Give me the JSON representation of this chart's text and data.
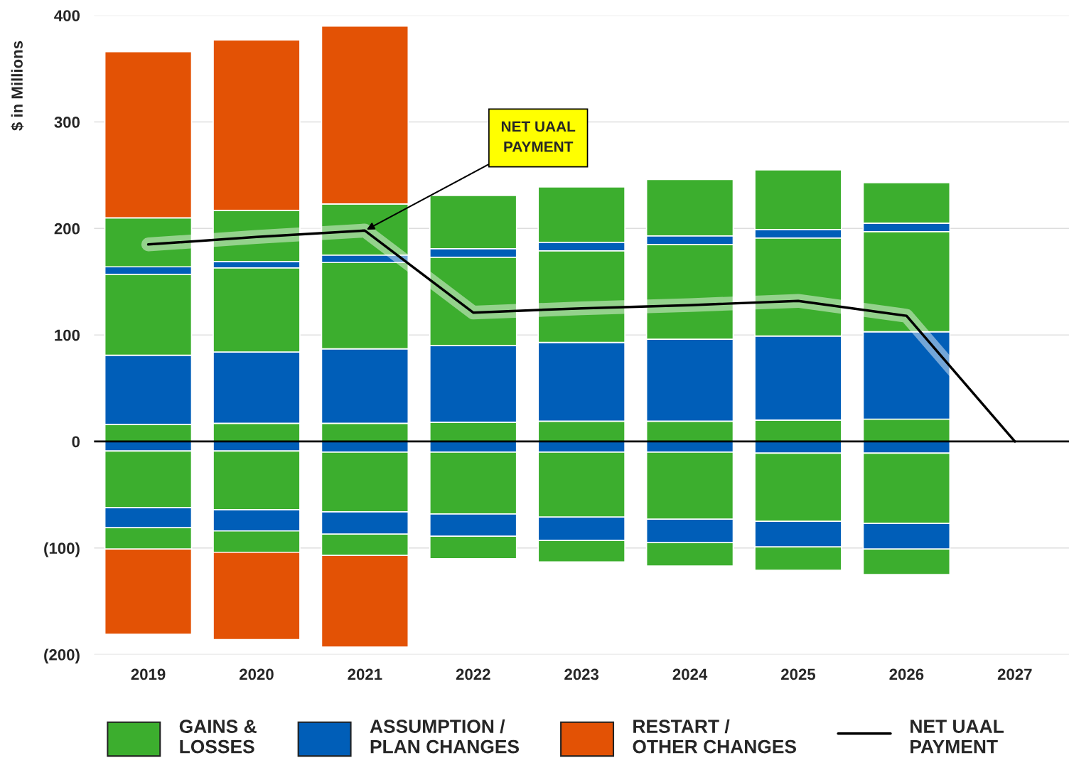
{
  "chart_data": {
    "type": "bar",
    "stacked": true,
    "ylabel": "$ in Millions",
    "categories": [
      "2019",
      "2020",
      "2021",
      "2022",
      "2023",
      "2024",
      "2025",
      "2026",
      "2027"
    ],
    "series": [
      {
        "name": "GAINS & LOSSES",
        "color": "#3cae2e",
        "values": [
          16,
          17,
          17,
          18,
          19,
          19,
          20,
          21,
          null
        ]
      },
      {
        "name": "ASSUMPTION / PLAN CHANGES",
        "color": "#005eb8",
        "values": [
          65,
          67,
          70,
          72,
          74,
          77,
          79,
          82,
          null
        ]
      },
      {
        "color": "#3cae2e",
        "values": [
          76,
          79,
          81,
          83,
          86,
          89,
          92,
          94,
          null
        ]
      },
      {
        "color": "#005eb8",
        "values": [
          7,
          6,
          7,
          8,
          8,
          8,
          8,
          8,
          null
        ]
      },
      {
        "color": "#3cae2e",
        "values": [
          46,
          48,
          48,
          50,
          52,
          53,
          56,
          38,
          null
        ]
      },
      {
        "name": "RESTART / OTHER CHANGES",
        "color": "#e35205",
        "values": [
          156,
          160,
          167,
          null,
          null,
          null,
          null,
          null,
          null
        ]
      },
      {
        "color": "#005eb8",
        "values": [
          -9,
          -9,
          -10,
          -10,
          -10,
          -10,
          -11,
          -11,
          null
        ]
      },
      {
        "color": "#3cae2e",
        "values": [
          -53,
          -55,
          -56,
          -58,
          -61,
          -63,
          -64,
          -66,
          null
        ]
      },
      {
        "color": "#005eb8",
        "values": [
          -19,
          -20,
          -21,
          -21,
          -22,
          -22,
          -24,
          -24,
          null
        ]
      },
      {
        "color": "#3cae2e",
        "values": [
          -20,
          -20,
          -20,
          -21,
          -20,
          -22,
          -22,
          -24,
          null
        ]
      },
      {
        "color": "#e35205",
        "values": [
          -80,
          -82,
          -86,
          null,
          null,
          null,
          null,
          null,
          null
        ]
      },
      {
        "name": "NET UAAL PAYMENT",
        "type": "line",
        "color": "#000000",
        "values": [
          185,
          192,
          198,
          121,
          125,
          128,
          132,
          118,
          0
        ]
      }
    ],
    "ylim": [
      -200,
      400
    ],
    "yticks": [
      {
        "value": -200,
        "label": "(200)"
      },
      {
        "value": -100,
        "label": "(100)"
      },
      0,
      100,
      200,
      300,
      400
    ],
    "grid": "y",
    "ref_lines": [
      {
        "axis": "y",
        "value": 0,
        "color": "#000000"
      }
    ],
    "annotations": [
      {
        "text": "NET UAAL\nPAYMENT",
        "x": "2021",
        "y": 198
      }
    ],
    "legend": "bottom"
  }
}
